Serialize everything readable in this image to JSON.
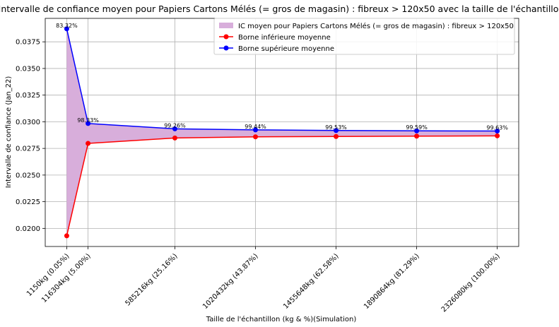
{
  "chart_data": {
    "type": "line",
    "title": "Intervalle de confiance moyen pour Papiers Cartons Mélés (= gros de magasin) : fibreux > 120x50 avec la taille de l'échantillon",
    "xlabel": "Taille de l'échantillon (kg & %)(Simulation)",
    "ylabel": "Intervalle de confiance (Jan_22)",
    "x": [
      1150,
      116304,
      585216,
      1020432,
      1455648,
      1890864,
      2326080
    ],
    "categories": [
      "1150kg (0.05%)",
      "116304kg (5.00%)",
      "585216kg (25.16%)",
      "1020432kg (43.87%)",
      "1455648kg (62.58%)",
      "1890864kg (81.29%)",
      "2326080kg (100.00%)"
    ],
    "series": [
      {
        "name": "Borne inférieure moyenne",
        "color": "#ff0000",
        "values": [
          0.0193,
          0.02797,
          0.02848,
          0.02859,
          0.02862,
          0.02865,
          0.02868
        ]
      },
      {
        "name": "Borne supérieure moyenne",
        "color": "#0000ff",
        "values": [
          0.03872,
          0.02984,
          0.02934,
          0.02924,
          0.02918,
          0.02915,
          0.02913
        ]
      }
    ],
    "fill": {
      "name": "IC moyen pour Papiers Cartons Mélés (= gros de magasin) : fibreux > 120x50",
      "color": "#d8aedb"
    },
    "annotations": [
      "83.32%",
      "98.33%",
      "99.26%",
      "99.44%",
      "99.53%",
      "99.59%",
      "99.63%"
    ],
    "yticks": [
      "0.0200",
      "0.0225",
      "0.0250",
      "0.0275",
      "0.0300",
      "0.0325",
      "0.0350",
      "0.0375"
    ],
    "ylim": [
      0.0183,
      0.0397
    ],
    "xlim": [
      -115000,
      2442000
    ],
    "grid": true,
    "legend": "top-right"
  }
}
